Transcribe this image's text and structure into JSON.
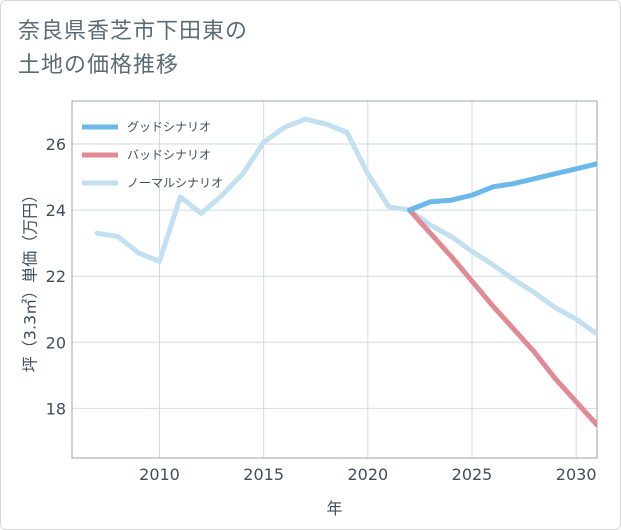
{
  "title_line1": "奈良県香芝市下田東の",
  "title_line2": "土地の価格推移",
  "chart_data": {
    "type": "line",
    "title": "奈良県香芝市下田東の土地の価格推移",
    "xlabel": "年",
    "ylabel": "坪（3.3㎡）単価（万円）",
    "xlim": [
      2005.8,
      2031
    ],
    "ylim": [
      16.5,
      27.3
    ],
    "xticks": [
      2010,
      2015,
      2020,
      2025,
      2030
    ],
    "yticks": [
      18,
      20,
      22,
      24,
      26
    ],
    "grid": true,
    "legend_position": "top-left",
    "series": [
      {
        "name": "グッドシナリオ",
        "color": "#6cb8ea",
        "x": [
          2022,
          2023,
          2024,
          2025,
          2026,
          2027,
          2028,
          2029,
          2030,
          2031
        ],
        "y": [
          24.0,
          24.25,
          24.3,
          24.45,
          24.7,
          24.8,
          24.95,
          25.1,
          25.25,
          25.4
        ]
      },
      {
        "name": "バッドシナリオ",
        "color": "#e08b94",
        "x": [
          2022,
          2023,
          2024,
          2025,
          2026,
          2027,
          2028,
          2029,
          2030,
          2031
        ],
        "y": [
          24.0,
          23.3,
          22.6,
          21.85,
          21.1,
          20.4,
          19.7,
          18.9,
          18.2,
          17.5
        ]
      },
      {
        "name": "ノーマルシナリオ",
        "color": "#c2e0ef",
        "x": [
          2007,
          2008,
          2009,
          2010,
          2011,
          2012,
          2013,
          2014,
          2015,
          2016,
          2017,
          2018,
          2019,
          2020,
          2021,
          2022,
          2023,
          2024,
          2025,
          2026,
          2027,
          2028,
          2029,
          2030,
          2031
        ],
        "y": [
          23.3,
          23.2,
          22.7,
          22.45,
          24.4,
          23.9,
          24.45,
          25.1,
          26.05,
          26.5,
          26.75,
          26.6,
          26.35,
          25.1,
          24.1,
          24.0,
          23.55,
          23.2,
          22.75,
          22.35,
          21.9,
          21.5,
          21.05,
          20.7,
          20.25
        ]
      }
    ]
  }
}
